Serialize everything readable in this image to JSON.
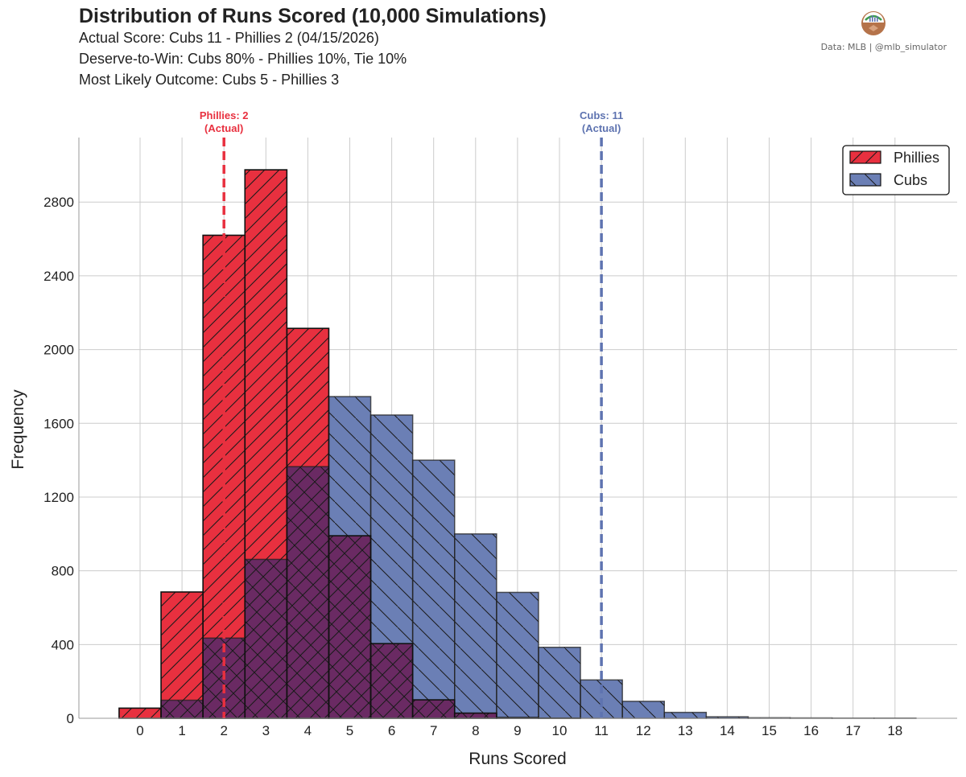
{
  "header": {
    "title": "Distribution of Runs Scored (10,000 Simulations)",
    "line1": "Actual Score: Cubs 11 - Phillies 2  (04/15/2026)",
    "line2": "Deserve-to-Win: Cubs 80% - Phillies 10%, Tie 10%",
    "line3": "Most Likely Outcome: Cubs 5 - Phillies 3",
    "credit": "Data: MLB  |  @mlb_simulator"
  },
  "colors": {
    "phillies": "#E8303F",
    "cubs": "#6B7FB5",
    "overlap": "#6A2A63",
    "phillies_line": "#E8303F",
    "cubs_line": "#5E73B0",
    "grid": "#cccccc"
  },
  "chart_data": {
    "type": "bar",
    "title": "Distribution of Runs Scored (10,000 Simulations)",
    "xlabel": "Runs Scored",
    "ylabel": "Frequency",
    "categories": [
      "0",
      "1",
      "2",
      "3",
      "4",
      "5",
      "6",
      "7",
      "8",
      "9",
      "10",
      "11",
      "12",
      "13",
      "14",
      "15",
      "16",
      "17",
      "18"
    ],
    "ylim": [
      0,
      3150
    ],
    "yticks": [
      0,
      400,
      800,
      1200,
      1600,
      2000,
      2400,
      2800
    ],
    "grid": true,
    "legend_position": "top-right",
    "series": [
      {
        "name": "Phillies",
        "values": [
          55,
          685,
          2620,
          2975,
          2115,
          990,
          405,
          100,
          28,
          4,
          1,
          0,
          0,
          0,
          0,
          0,
          0,
          0,
          0
        ]
      },
      {
        "name": "Cubs",
        "values": [
          0,
          98,
          435,
          862,
          1365,
          1745,
          1645,
          1400,
          1000,
          683,
          385,
          208,
          92,
          32,
          8,
          3,
          2,
          1,
          1
        ]
      }
    ],
    "annotations": [
      {
        "series": "Phillies",
        "x": 2,
        "line1": "Phillies: 2",
        "line2": "(Actual)"
      },
      {
        "series": "Cubs",
        "x": 11,
        "line1": "Cubs: 11",
        "line2": "(Actual)"
      }
    ]
  }
}
